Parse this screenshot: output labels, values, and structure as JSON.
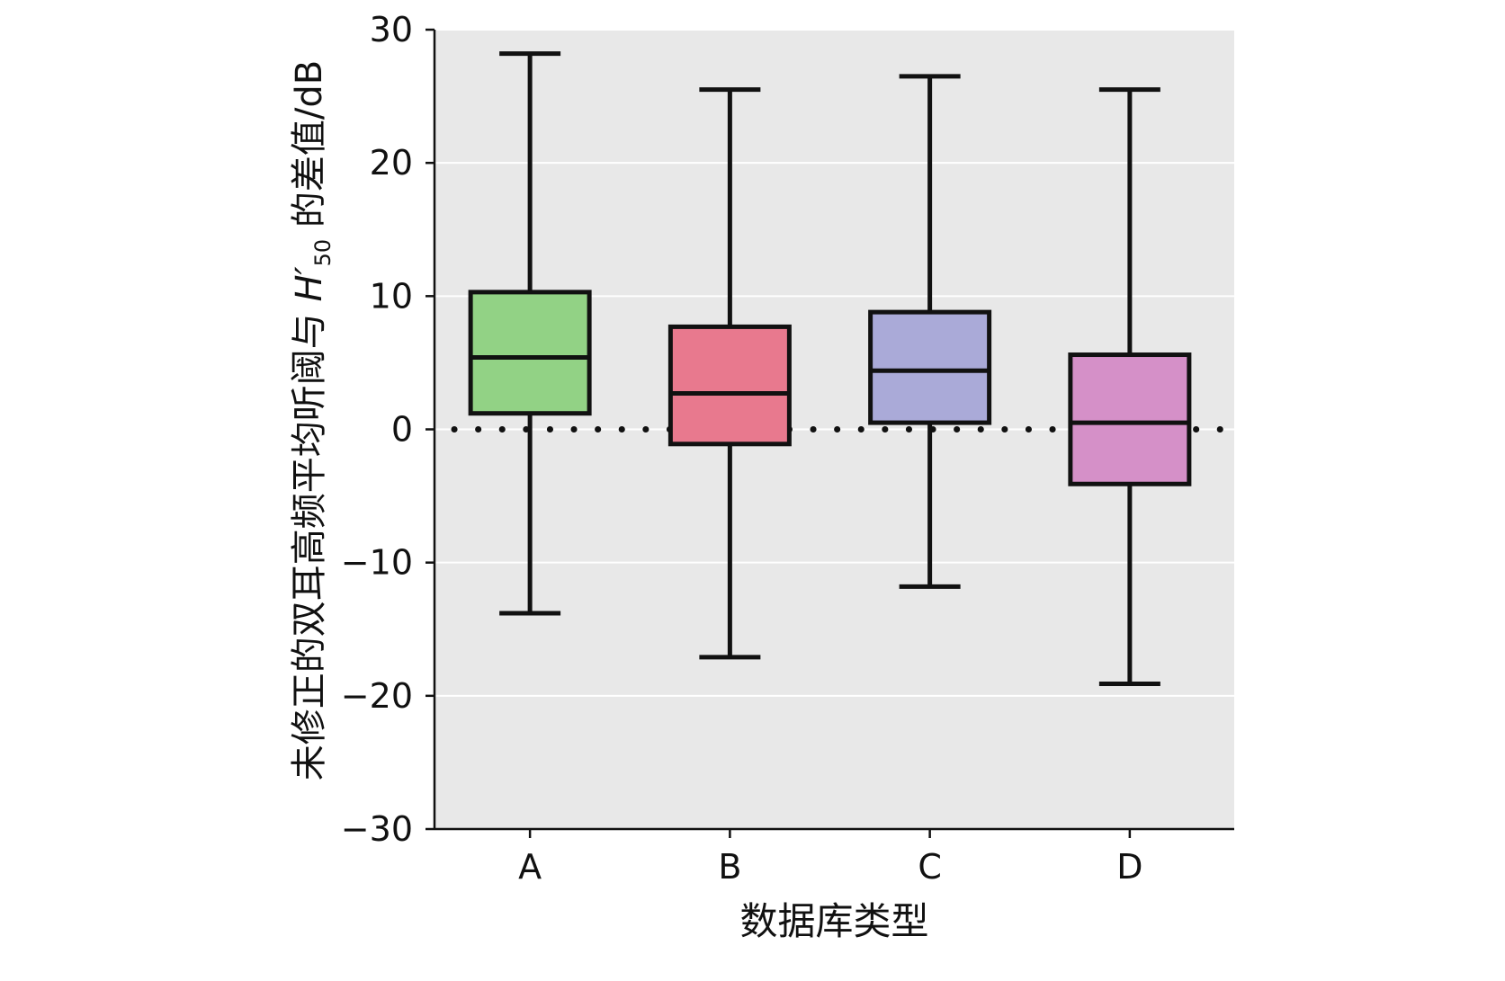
{
  "chart_data": {
    "type": "box",
    "xlabel": "数据库类型",
    "ylabel": {
      "prefix": "未修正的双耳高频平均听阈与 ",
      "var": "H′",
      "sub": "50",
      "suffix": " 的差值/dB"
    },
    "ylim": [
      -30,
      30
    ],
    "yticks": [
      30,
      20,
      10,
      0,
      -10,
      -20,
      -30
    ],
    "ytick_labels": [
      "30",
      "20",
      "10",
      "0",
      "−10",
      "−20",
      "−30"
    ],
    "grid": true,
    "reference_line": {
      "y": 0,
      "style": "dotted"
    },
    "categories": [
      "A",
      "B",
      "C",
      "D"
    ],
    "boxes": [
      {
        "category": "A",
        "min": -13.8,
        "q1": 1.2,
        "median": 5.4,
        "q3": 10.3,
        "max": 28.2,
        "color": "#92d285"
      },
      {
        "category": "B",
        "min": -17.1,
        "q1": -1.1,
        "median": 2.7,
        "q3": 7.7,
        "max": 25.5,
        "color": "#e8798e"
      },
      {
        "category": "C",
        "min": -11.8,
        "q1": 0.5,
        "median": 4.4,
        "q3": 8.8,
        "max": 26.5,
        "color": "#aaaad8"
      },
      {
        "category": "D",
        "min": -19.1,
        "q1": -4.1,
        "median": 0.5,
        "q3": 5.6,
        "max": 25.5,
        "color": "#d590c8"
      }
    ]
  },
  "colors": {
    "plot_background": "#e8e8e8",
    "grid": "#ffffff",
    "stroke": "#111111"
  }
}
